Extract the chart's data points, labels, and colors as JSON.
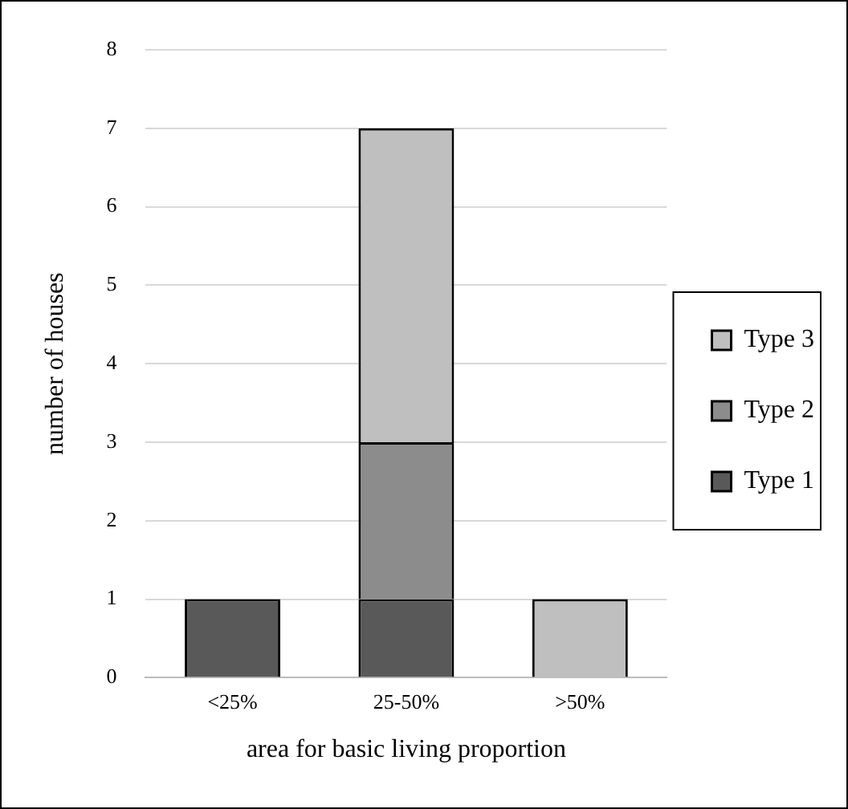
{
  "chart_data": {
    "type": "bar",
    "stacked": true,
    "xlabel": "area for basic living proportion",
    "ylabel": "number of houses",
    "categories": [
      "<25%",
      "25-50%",
      ">50%"
    ],
    "series": [
      {
        "name": "Type 1",
        "color": "#595959",
        "values": [
          1,
          1,
          0
        ]
      },
      {
        "name": "Type 2",
        "color": "#8c8c8c",
        "values": [
          0,
          2,
          0
        ]
      },
      {
        "name": "Type 3",
        "color": "#bfbfbf",
        "values": [
          0,
          4,
          1
        ]
      }
    ],
    "ylim": [
      0,
      8
    ],
    "yticks": [
      0,
      1,
      2,
      3,
      4,
      5,
      6,
      7,
      8
    ],
    "grid": "y",
    "legend": "right"
  }
}
